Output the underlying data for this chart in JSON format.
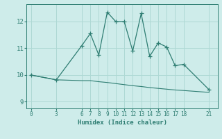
{
  "xlabel": "Humidex (Indice chaleur)",
  "background_color": "#ceecea",
  "grid_color": "#aed8d4",
  "line_color": "#2e7d72",
  "xticks": [
    0,
    3,
    6,
    7,
    8,
    9,
    10,
    11,
    12,
    13,
    14,
    15,
    16,
    17,
    18,
    21
  ],
  "yticks": [
    9,
    10,
    11,
    12
  ],
  "ylim": [
    8.75,
    12.65
  ],
  "xlim": [
    -0.5,
    22.0
  ],
  "line1_x": [
    0,
    3,
    6,
    7,
    8,
    9,
    10,
    11,
    12,
    13,
    14,
    15,
    16,
    17,
    18,
    21
  ],
  "line1_y": [
    10.0,
    9.82,
    11.1,
    11.55,
    10.75,
    12.35,
    12.0,
    12.0,
    10.9,
    12.3,
    10.7,
    11.2,
    11.05,
    10.35,
    10.4,
    9.45
  ],
  "line2_x": [
    0,
    3,
    6,
    7,
    8,
    9,
    10,
    11,
    12,
    13,
    14,
    15,
    16,
    17,
    18,
    21
  ],
  "line2_y": [
    10.0,
    9.82,
    9.79,
    9.79,
    9.75,
    9.72,
    9.68,
    9.64,
    9.6,
    9.57,
    9.53,
    9.5,
    9.47,
    9.44,
    9.42,
    9.35
  ]
}
